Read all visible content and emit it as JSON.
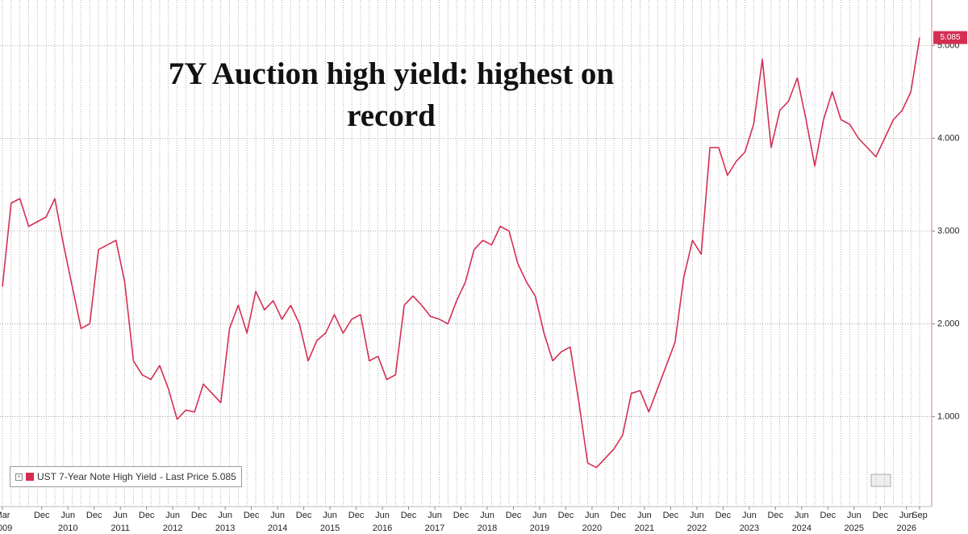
{
  "chart_data": {
    "type": "line",
    "title": "7Y Auction high yield: highest on record",
    "x": [
      "2009-03",
      "2009-05",
      "2009-07",
      "2009-09",
      "2009-11",
      "2010-01",
      "2010-03",
      "2010-05",
      "2010-07",
      "2010-09",
      "2010-11",
      "2011-01",
      "2011-03",
      "2011-05",
      "2011-07",
      "2011-09",
      "2011-11",
      "2012-01",
      "2012-03",
      "2012-05",
      "2012-07",
      "2012-09",
      "2012-11",
      "2013-01",
      "2013-03",
      "2013-05",
      "2013-07",
      "2013-09",
      "2013-11",
      "2014-01",
      "2014-03",
      "2014-05",
      "2014-07",
      "2014-09",
      "2014-11",
      "2015-01",
      "2015-03",
      "2015-05",
      "2015-07",
      "2015-09",
      "2015-11",
      "2016-01",
      "2016-03",
      "2016-05",
      "2016-07",
      "2016-09",
      "2016-11",
      "2017-01",
      "2017-03",
      "2017-05",
      "2017-07",
      "2017-09",
      "2017-11",
      "2018-01",
      "2018-03",
      "2018-05",
      "2018-07",
      "2018-09",
      "2018-11",
      "2019-01",
      "2019-03",
      "2019-05",
      "2019-07",
      "2019-09",
      "2019-11",
      "2020-01",
      "2020-03",
      "2020-05",
      "2020-07",
      "2020-09",
      "2020-11",
      "2021-01",
      "2021-03",
      "2021-05",
      "2021-07",
      "2021-09",
      "2021-11",
      "2022-01",
      "2022-03",
      "2022-05",
      "2022-07",
      "2022-09",
      "2022-11",
      "2023-01",
      "2023-03",
      "2023-05",
      "2023-07",
      "2023-09",
      "2023-11",
      "2024-01",
      "2024-03",
      "2024-05",
      "2024-07",
      "2024-09",
      "2024-11",
      "2025-01",
      "2025-03",
      "2025-05",
      "2025-07",
      "2025-09",
      "2025-11",
      "2026-01",
      "2026-03",
      "2026-05",
      "2026-07",
      "2026-09"
    ],
    "series": [
      {
        "name": "UST 7-Year Note High Yield",
        "color": "#d42f52",
        "values": [
          2.4,
          3.3,
          3.35,
          3.05,
          3.1,
          3.15,
          3.35,
          2.85,
          2.4,
          1.95,
          2.0,
          2.8,
          2.85,
          2.9,
          2.45,
          1.6,
          1.45,
          1.4,
          1.55,
          1.3,
          0.97,
          1.07,
          1.05,
          1.35,
          1.25,
          1.15,
          1.95,
          2.2,
          1.9,
          2.35,
          2.15,
          2.25,
          2.05,
          2.2,
          2.0,
          1.6,
          1.82,
          1.9,
          2.1,
          1.9,
          2.05,
          2.1,
          1.6,
          1.65,
          1.4,
          1.45,
          2.2,
          2.3,
          2.2,
          2.08,
          2.05,
          2.0,
          2.25,
          2.45,
          2.8,
          2.9,
          2.85,
          3.05,
          3.0,
          2.65,
          2.45,
          2.3,
          1.9,
          1.6,
          1.7,
          1.75,
          1.15,
          0.5,
          0.45,
          0.55,
          0.65,
          0.8,
          1.25,
          1.28,
          1.05,
          1.3,
          1.55,
          1.8,
          2.5,
          2.9,
          2.75,
          3.9,
          3.9,
          3.6,
          3.75,
          3.85,
          4.15,
          4.85,
          3.9,
          4.3,
          4.4,
          4.65,
          4.2,
          3.7,
          4.2,
          4.5,
          4.2,
          4.15,
          4.0,
          3.9,
          3.8,
          4.0,
          4.2,
          4.3,
          4.5,
          5.085
        ]
      }
    ],
    "last_price_label": "- Last Price",
    "xlim": [
      "2009-03",
      "2026-09"
    ],
    "xticks": [
      {
        "value": "2009-03",
        "label": "Mar"
      },
      {
        "value": "2009-12",
        "label": "Dec"
      },
      {
        "value": "2010-06",
        "label": "Jun"
      },
      {
        "value": "2010-12",
        "label": "Dec"
      },
      {
        "value": "2011-06",
        "label": "Jun"
      },
      {
        "value": "2011-12",
        "label": "Dec"
      },
      {
        "value": "2012-06",
        "label": "Jun"
      },
      {
        "value": "2012-12",
        "label": "Dec"
      },
      {
        "value": "2013-06",
        "label": "Jun"
      },
      {
        "value": "2013-12",
        "label": "Dec"
      },
      {
        "value": "2014-06",
        "label": "Jun"
      },
      {
        "value": "2014-12",
        "label": "Dec"
      },
      {
        "value": "2015-06",
        "label": "Jun"
      },
      {
        "value": "2015-12",
        "label": "Dec"
      },
      {
        "value": "2016-06",
        "label": "Jun"
      },
      {
        "value": "2016-12",
        "label": "Dec"
      },
      {
        "value": "2017-06",
        "label": "Jun"
      },
      {
        "value": "2017-12",
        "label": "Dec"
      },
      {
        "value": "2018-06",
        "label": "Jun"
      },
      {
        "value": "2018-12",
        "label": "Dec"
      },
      {
        "value": "2019-06",
        "label": "Jun"
      },
      {
        "value": "2019-12",
        "label": "Dec"
      },
      {
        "value": "2020-06",
        "label": "Jun"
      },
      {
        "value": "2020-12",
        "label": "Dec"
      },
      {
        "value": "2021-06",
        "label": "Jun"
      },
      {
        "value": "2021-12",
        "label": "Dec"
      },
      {
        "value": "2022-06",
        "label": "Jun"
      },
      {
        "value": "2022-12",
        "label": "Dec"
      },
      {
        "value": "2023-06",
        "label": "Jun"
      },
      {
        "value": "2023-12",
        "label": "Dec"
      },
      {
        "value": "2024-06",
        "label": "Jun"
      },
      {
        "value": "2024-12",
        "label": "Dec"
      },
      {
        "value": "2025-06",
        "label": "Jun"
      },
      {
        "value": "2025-12",
        "label": "Dec"
      },
      {
        "value": "2026-06",
        "label": "Jun"
      },
      {
        "value": "2026-09",
        "label": "Sep"
      }
    ],
    "xtick_years": [
      {
        "value": "2009-03",
        "label": "2009"
      },
      {
        "value": "2010-06",
        "label": "2010"
      },
      {
        "value": "2011-06",
        "label": "2011"
      },
      {
        "value": "2012-06",
        "label": "2012"
      },
      {
        "value": "2013-06",
        "label": "2013"
      },
      {
        "value": "2014-06",
        "label": "2014"
      },
      {
        "value": "2015-06",
        "label": "2015"
      },
      {
        "value": "2016-06",
        "label": "2016"
      },
      {
        "value": "2017-06",
        "label": "2017"
      },
      {
        "value": "2018-06",
        "label": "2018"
      },
      {
        "value": "2019-06",
        "label": "2019"
      },
      {
        "value": "2020-06",
        "label": "2020"
      },
      {
        "value": "2021-06",
        "label": "2021"
      },
      {
        "value": "2022-06",
        "label": "2022"
      },
      {
        "value": "2023-06",
        "label": "2023"
      },
      {
        "value": "2024-06",
        "label": "2024"
      },
      {
        "value": "2025-06",
        "label": "2025"
      },
      {
        "value": "2026-06",
        "label": "2026"
      }
    ],
    "ylim": [
      0.03,
      5.49
    ],
    "yticks": [
      {
        "value": 1,
        "label": "1.000"
      },
      {
        "value": 2,
        "label": "2.000"
      },
      {
        "value": 3,
        "label": "3.000"
      },
      {
        "value": 4,
        "label": "4.000"
      },
      {
        "value": 5,
        "label": "5.000"
      }
    ],
    "grid": true,
    "legend_position": "lower left"
  }
}
